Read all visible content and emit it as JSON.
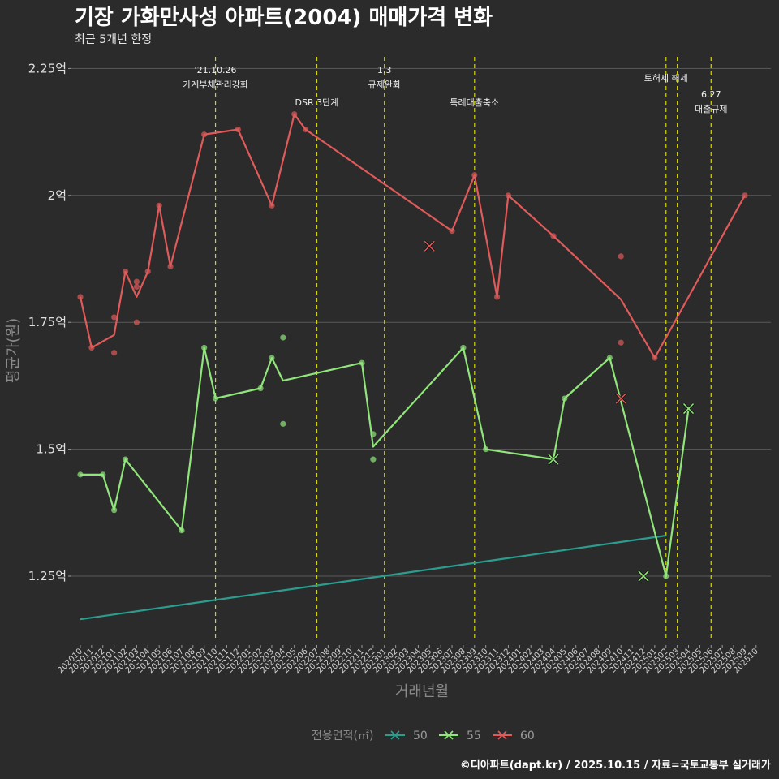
{
  "chart_data": {
    "type": "line",
    "title": "기장 가화만사성 아파트(2004) 매매가격 변화",
    "subtitle": "최근 5개년 한정",
    "xlabel": "거래년월",
    "ylabel": "평균가(원)",
    "caption": "©디아파트(dapt.kr) / 2025.10.15 / 자료=국토교통부 실거래가",
    "legend_title": "전용면적(㎡)",
    "legend_position": "bottom",
    "ylim": [
      1.12,
      2.27
    ],
    "y_ticks": [
      {
        "value": 1.25,
        "label": "1.25억"
      },
      {
        "value": 1.5,
        "label": "1.5억"
      },
      {
        "value": 1.75,
        "label": "1.75억"
      },
      {
        "value": 2.0,
        "label": "2억"
      },
      {
        "value": 2.25,
        "label": "2.25억"
      }
    ],
    "x_labels": [
      "202010",
      "202011",
      "202012",
      "202101",
      "202102",
      "202103",
      "202104",
      "202105",
      "202106",
      "202107",
      "202108",
      "202109",
      "202110",
      "202111",
      "202112",
      "202201",
      "202202",
      "202203",
      "202204",
      "202205",
      "202206",
      "202207",
      "202208",
      "202209",
      "202210",
      "202211",
      "202212",
      "202301",
      "202302",
      "202303",
      "202304",
      "202305",
      "202306",
      "202307",
      "202308",
      "202309",
      "202310",
      "202311",
      "202312",
      "202401",
      "202402",
      "202403",
      "202404",
      "202405",
      "202406",
      "202407",
      "202408",
      "202409",
      "202410",
      "202411",
      "202412",
      "202501",
      "202502",
      "202503",
      "202504",
      "202505",
      "202506",
      "202507",
      "202508",
      "202509",
      "202510"
    ],
    "events": [
      {
        "x": 12,
        "lines": [
          "'21.10.26",
          "가계부채관리강화"
        ],
        "level": 1
      },
      {
        "x": 21,
        "lines": [
          "DSR 3단계"
        ],
        "level": 2
      },
      {
        "x": 27,
        "lines": [
          "1.3",
          "규제완화"
        ],
        "level": 1
      },
      {
        "x": 35,
        "lines": [
          "특례대출축소"
        ],
        "level": 2
      },
      {
        "x": 52,
        "lines": [
          "토허제 해제"
        ],
        "level": 0
      },
      {
        "x": 53,
        "lines": [],
        "level": 0
      },
      {
        "x": 56,
        "lines": [
          "6.27",
          "대출규제"
        ],
        "level": 3
      }
    ],
    "series": [
      {
        "name": "50",
        "color": "#2a9d8f",
        "line": [
          [
            0,
            1.165
          ],
          [
            52,
            1.33
          ]
        ],
        "points": [],
        "crosses": []
      },
      {
        "name": "55",
        "color": "#90e67a",
        "line": [
          [
            0,
            1.45
          ],
          [
            2,
            1.45
          ],
          [
            3,
            1.38
          ],
          [
            4,
            1.48
          ],
          [
            9,
            1.34
          ],
          [
            11,
            1.7
          ],
          [
            12,
            1.6
          ],
          [
            16,
            1.62
          ],
          [
            17,
            1.68
          ],
          [
            18,
            1.635
          ],
          [
            25,
            1.67
          ],
          [
            26,
            1.505
          ],
          [
            34,
            1.7
          ],
          [
            36,
            1.5
          ],
          [
            42,
            1.48
          ],
          [
            43,
            1.6
          ],
          [
            47,
            1.68
          ],
          [
            52,
            1.25
          ],
          [
            54,
            1.58
          ]
        ],
        "points": [
          [
            0,
            1.45
          ],
          [
            2,
            1.45
          ],
          [
            3,
            1.38
          ],
          [
            4,
            1.48
          ],
          [
            9,
            1.34
          ],
          [
            11,
            1.7
          ],
          [
            12,
            1.6
          ],
          [
            16,
            1.62
          ],
          [
            17,
            1.68
          ],
          [
            18,
            1.72
          ],
          [
            18,
            1.55
          ],
          [
            25,
            1.67
          ],
          [
            26,
            1.53
          ],
          [
            26,
            1.48
          ],
          [
            34,
            1.7
          ],
          [
            36,
            1.5
          ],
          [
            43,
            1.6
          ],
          [
            47,
            1.68
          ],
          [
            52,
            1.25
          ]
        ],
        "crosses": [
          [
            42,
            1.48
          ],
          [
            50,
            1.25
          ],
          [
            54,
            1.58
          ]
        ]
      },
      {
        "name": "60",
        "color": "#e05a5a",
        "line": [
          [
            0,
            1.8
          ],
          [
            1,
            1.7
          ],
          [
            3,
            1.725
          ],
          [
            4,
            1.85
          ],
          [
            5,
            1.8
          ],
          [
            6,
            1.85
          ],
          [
            7,
            1.98
          ],
          [
            8,
            1.86
          ],
          [
            11,
            2.12
          ],
          [
            14,
            2.13
          ],
          [
            17,
            1.98
          ],
          [
            19,
            2.16
          ],
          [
            20,
            2.13
          ],
          [
            33,
            1.93
          ],
          [
            35,
            2.04
          ],
          [
            37,
            1.8
          ],
          [
            38,
            2.0
          ],
          [
            42,
            1.92
          ],
          [
            48,
            1.795
          ],
          [
            51,
            1.68
          ],
          [
            59,
            2.0
          ]
        ],
        "points": [
          [
            0,
            1.8
          ],
          [
            1,
            1.7
          ],
          [
            3,
            1.76
          ],
          [
            3,
            1.69
          ],
          [
            4,
            1.85
          ],
          [
            5,
            1.83
          ],
          [
            5,
            1.82
          ],
          [
            5,
            1.75
          ],
          [
            6,
            1.85
          ],
          [
            7,
            1.98
          ],
          [
            8,
            1.86
          ],
          [
            11,
            2.12
          ],
          [
            14,
            2.13
          ],
          [
            17,
            1.98
          ],
          [
            19,
            2.16
          ],
          [
            20,
            2.13
          ],
          [
            33,
            1.93
          ],
          [
            35,
            2.04
          ],
          [
            37,
            1.8
          ],
          [
            38,
            2.0
          ],
          [
            42,
            1.92
          ],
          [
            48,
            1.88
          ],
          [
            48,
            1.71
          ],
          [
            51,
            1.68
          ],
          [
            59,
            2.0
          ]
        ],
        "crosses": [
          [
            31,
            1.9
          ],
          [
            48,
            1.6
          ]
        ]
      }
    ]
  }
}
